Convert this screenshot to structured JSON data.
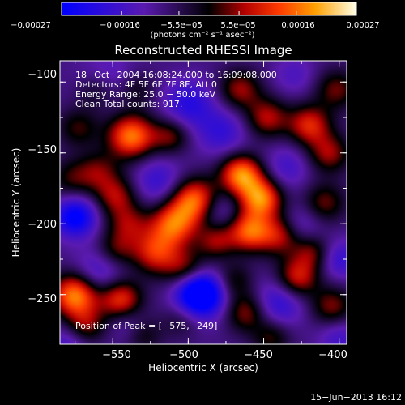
{
  "chart_data": {
    "type": "heatmap",
    "title": "Reconstructed RHESSI Image",
    "xlabel": "Heliocentric X (arcsec)",
    "ylabel": "Heliocentric Y (arcsec)",
    "xlim": [
      -585,
      -395
    ],
    "ylim": [
      -285,
      -85
    ],
    "x_ticks": [
      -550,
      -500,
      -450,
      -400
    ],
    "y_ticks": [
      -100,
      -150,
      -200,
      -250
    ],
    "x_tick_labels": [
      "−550",
      "−500",
      "−450",
      "−400"
    ],
    "y_tick_labels": [
      "−100",
      "−150",
      "−200",
      "−250"
    ],
    "colorbar": {
      "ticks": [
        -0.00027,
        -0.00016,
        -5.5e-05,
        5.5e-05,
        0.00016,
        0.00027
      ],
      "tick_labels": [
        "−0.00027",
        "−0.00016",
        "−5.5e−05",
        "5.5e−05",
        "0.00016",
        "0.00027"
      ],
      "unit_label": "(photons cm⁻² s⁻¹ asec⁻²)",
      "range": [
        -0.00027,
        0.00027
      ]
    },
    "annotations": [
      "18−Oct−2004 16:08:24.000  to 16:09:08.000",
      "Detectors: 4F 5F 6F 7F 8F, Att 0",
      "Energy Range: 25.0 − 50.0 keV",
      "Clean    Total counts: 917.",
      "Position of Peak = [−575,−249]"
    ],
    "peak": {
      "x": -575,
      "y": -249
    },
    "timestamp": "15−Jun−2013 16:12",
    "sources": [
      {
        "x": -575,
        "y": -250,
        "v": 0.00027,
        "r": 11
      },
      {
        "x": -545,
        "y": -253,
        "v": 0.0002,
        "r": 10
      },
      {
        "x": -568,
        "y": -272,
        "v": 0.00012,
        "r": 9
      },
      {
        "x": -560,
        "y": -105,
        "v": 0.00012,
        "r": 10
      },
      {
        "x": -538,
        "y": -138,
        "v": 0.00025,
        "r": 11
      },
      {
        "x": -512,
        "y": -138,
        "v": 0.00012,
        "r": 9
      },
      {
        "x": -535,
        "y": -105,
        "v": 8e-05,
        "r": 9
      },
      {
        "x": -466,
        "y": -105,
        "v": 0.00014,
        "r": 10
      },
      {
        "x": -402,
        "y": -105,
        "v": 0.00012,
        "r": 10
      },
      {
        "x": -448,
        "y": -125,
        "v": 0.00015,
        "r": 10
      },
      {
        "x": -420,
        "y": -130,
        "v": 0.00018,
        "r": 10
      },
      {
        "x": -407,
        "y": -150,
        "v": 0.00014,
        "r": 10
      },
      {
        "x": -410,
        "y": -185,
        "v": 0.00012,
        "r": 10
      },
      {
        "x": -573,
        "y": -132,
        "v": 0.0001,
        "r": 10
      },
      {
        "x": -578,
        "y": -168,
        "v": 9e-05,
        "r": 10
      },
      {
        "x": -560,
        "y": -163,
        "v": 0.00011,
        "r": 10
      },
      {
        "x": -548,
        "y": -180,
        "v": 0.00014,
        "r": 10
      },
      {
        "x": -540,
        "y": -200,
        "v": 0.00012,
        "r": 10
      },
      {
        "x": -548,
        "y": -218,
        "v": 0.0001,
        "r": 9
      },
      {
        "x": -496,
        "y": -183,
        "v": 0.00024,
        "r": 11
      },
      {
        "x": -510,
        "y": -200,
        "v": 0.00022,
        "r": 11
      },
      {
        "x": -522,
        "y": -220,
        "v": 0.00018,
        "r": 11
      },
      {
        "x": -502,
        "y": -232,
        "v": 0.00013,
        "r": 10
      },
      {
        "x": -465,
        "y": -165,
        "v": 0.00026,
        "r": 10
      },
      {
        "x": -452,
        "y": -182,
        "v": 0.00025,
        "r": 10
      },
      {
        "x": -460,
        "y": -205,
        "v": 0.00022,
        "r": 10
      },
      {
        "x": -440,
        "y": -208,
        "v": 0.00015,
        "r": 10
      },
      {
        "x": -482,
        "y": -212,
        "v": 0.00013,
        "r": 9
      },
      {
        "x": -428,
        "y": -238,
        "v": 0.00018,
        "r": 10
      },
      {
        "x": -418,
        "y": -220,
        "v": 0.00012,
        "r": 9
      },
      {
        "x": -405,
        "y": -258,
        "v": 0.00013,
        "r": 10
      },
      {
        "x": -470,
        "y": -240,
        "v": 0.0001,
        "r": 9
      },
      {
        "x": -462,
        "y": -262,
        "v": 0.00014,
        "r": 10
      },
      {
        "x": -445,
        "y": -280,
        "v": 0.0001,
        "r": 9
      },
      {
        "x": -505,
        "y": -268,
        "v": 6e-05,
        "r": 9
      },
      {
        "x": -530,
        "y": -278,
        "v": 8e-05,
        "r": 9
      },
      {
        "x": -555,
        "y": -100,
        "v": -0.0001,
        "r": 13
      },
      {
        "x": -500,
        "y": -115,
        "v": -0.00012,
        "r": 12
      },
      {
        "x": -478,
        "y": -135,
        "v": -0.0001,
        "r": 12
      },
      {
        "x": -575,
        "y": -195,
        "v": -0.0002,
        "r": 10
      },
      {
        "x": -560,
        "y": -235,
        "v": -0.0001,
        "r": 12
      },
      {
        "x": -520,
        "y": -170,
        "v": -0.0001,
        "r": 12
      },
      {
        "x": -480,
        "y": -190,
        "v": -8e-05,
        "r": 10
      },
      {
        "x": -490,
        "y": -250,
        "v": -0.00018,
        "r": 12
      },
      {
        "x": -495,
        "y": -248,
        "v": -0.00014,
        "r": 10
      },
      {
        "x": -440,
        "y": -255,
        "v": -0.00012,
        "r": 12
      },
      {
        "x": -435,
        "y": -160,
        "v": -8e-05,
        "r": 11
      },
      {
        "x": -425,
        "y": -200,
        "v": -7e-05,
        "r": 10
      },
      {
        "x": -400,
        "y": -225,
        "v": -0.0001,
        "r": 10
      },
      {
        "x": -400,
        "y": -280,
        "v": -8e-05,
        "r": 10
      },
      {
        "x": -580,
        "y": -285,
        "v": -8e-05,
        "r": 10
      },
      {
        "x": -430,
        "y": -95,
        "v": -6e-05,
        "r": 10
      },
      {
        "x": -540,
        "y": -270,
        "v": -6e-05,
        "r": 9
      }
    ]
  }
}
